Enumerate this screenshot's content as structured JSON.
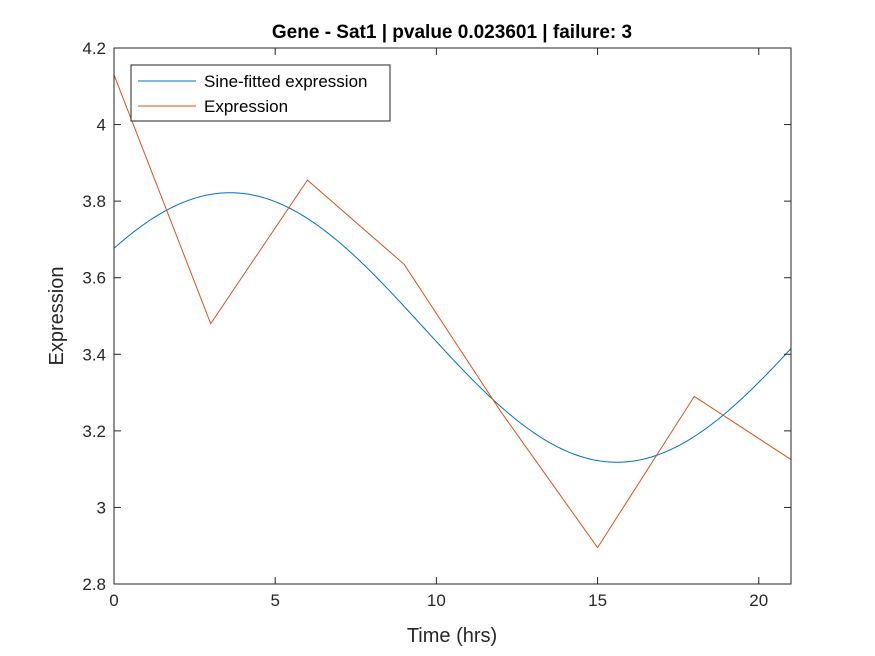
{
  "chart_data": {
    "type": "line",
    "title": "Gene - Sat1 | pvalue 0.023601 | failure: 3",
    "xlabel": "Time (hrs)",
    "ylabel": "Expression",
    "xlim": [
      0,
      21
    ],
    "ylim": [
      2.8,
      4.2
    ],
    "xticks": [
      0,
      5,
      10,
      15,
      20
    ],
    "yticks": [
      2.8,
      3,
      3.2,
      3.4,
      3.6,
      3.8,
      4,
      4.2
    ],
    "xtick_labels": [
      "0",
      "5",
      "10",
      "15",
      "20"
    ],
    "ytick_labels": [
      "2.8",
      "3",
      "3.2",
      "3.4",
      "3.6",
      "3.8",
      "4",
      "4.2"
    ],
    "grid": false,
    "legend_position": "top-left",
    "series": [
      {
        "name": "Sine-fitted expression",
        "color": "#0072BD",
        "fit": {
          "mean": 3.47,
          "amplitude": 0.352,
          "period_hrs": 24,
          "peak_hrs": 3.6
        }
      },
      {
        "name": "Expression",
        "color": "#D95319",
        "x": [
          0,
          3,
          6,
          9,
          12,
          15,
          18,
          21
        ],
        "y": [
          4.13,
          3.48,
          3.855,
          3.635,
          3.25,
          2.895,
          3.29,
          3.125
        ]
      }
    ]
  }
}
